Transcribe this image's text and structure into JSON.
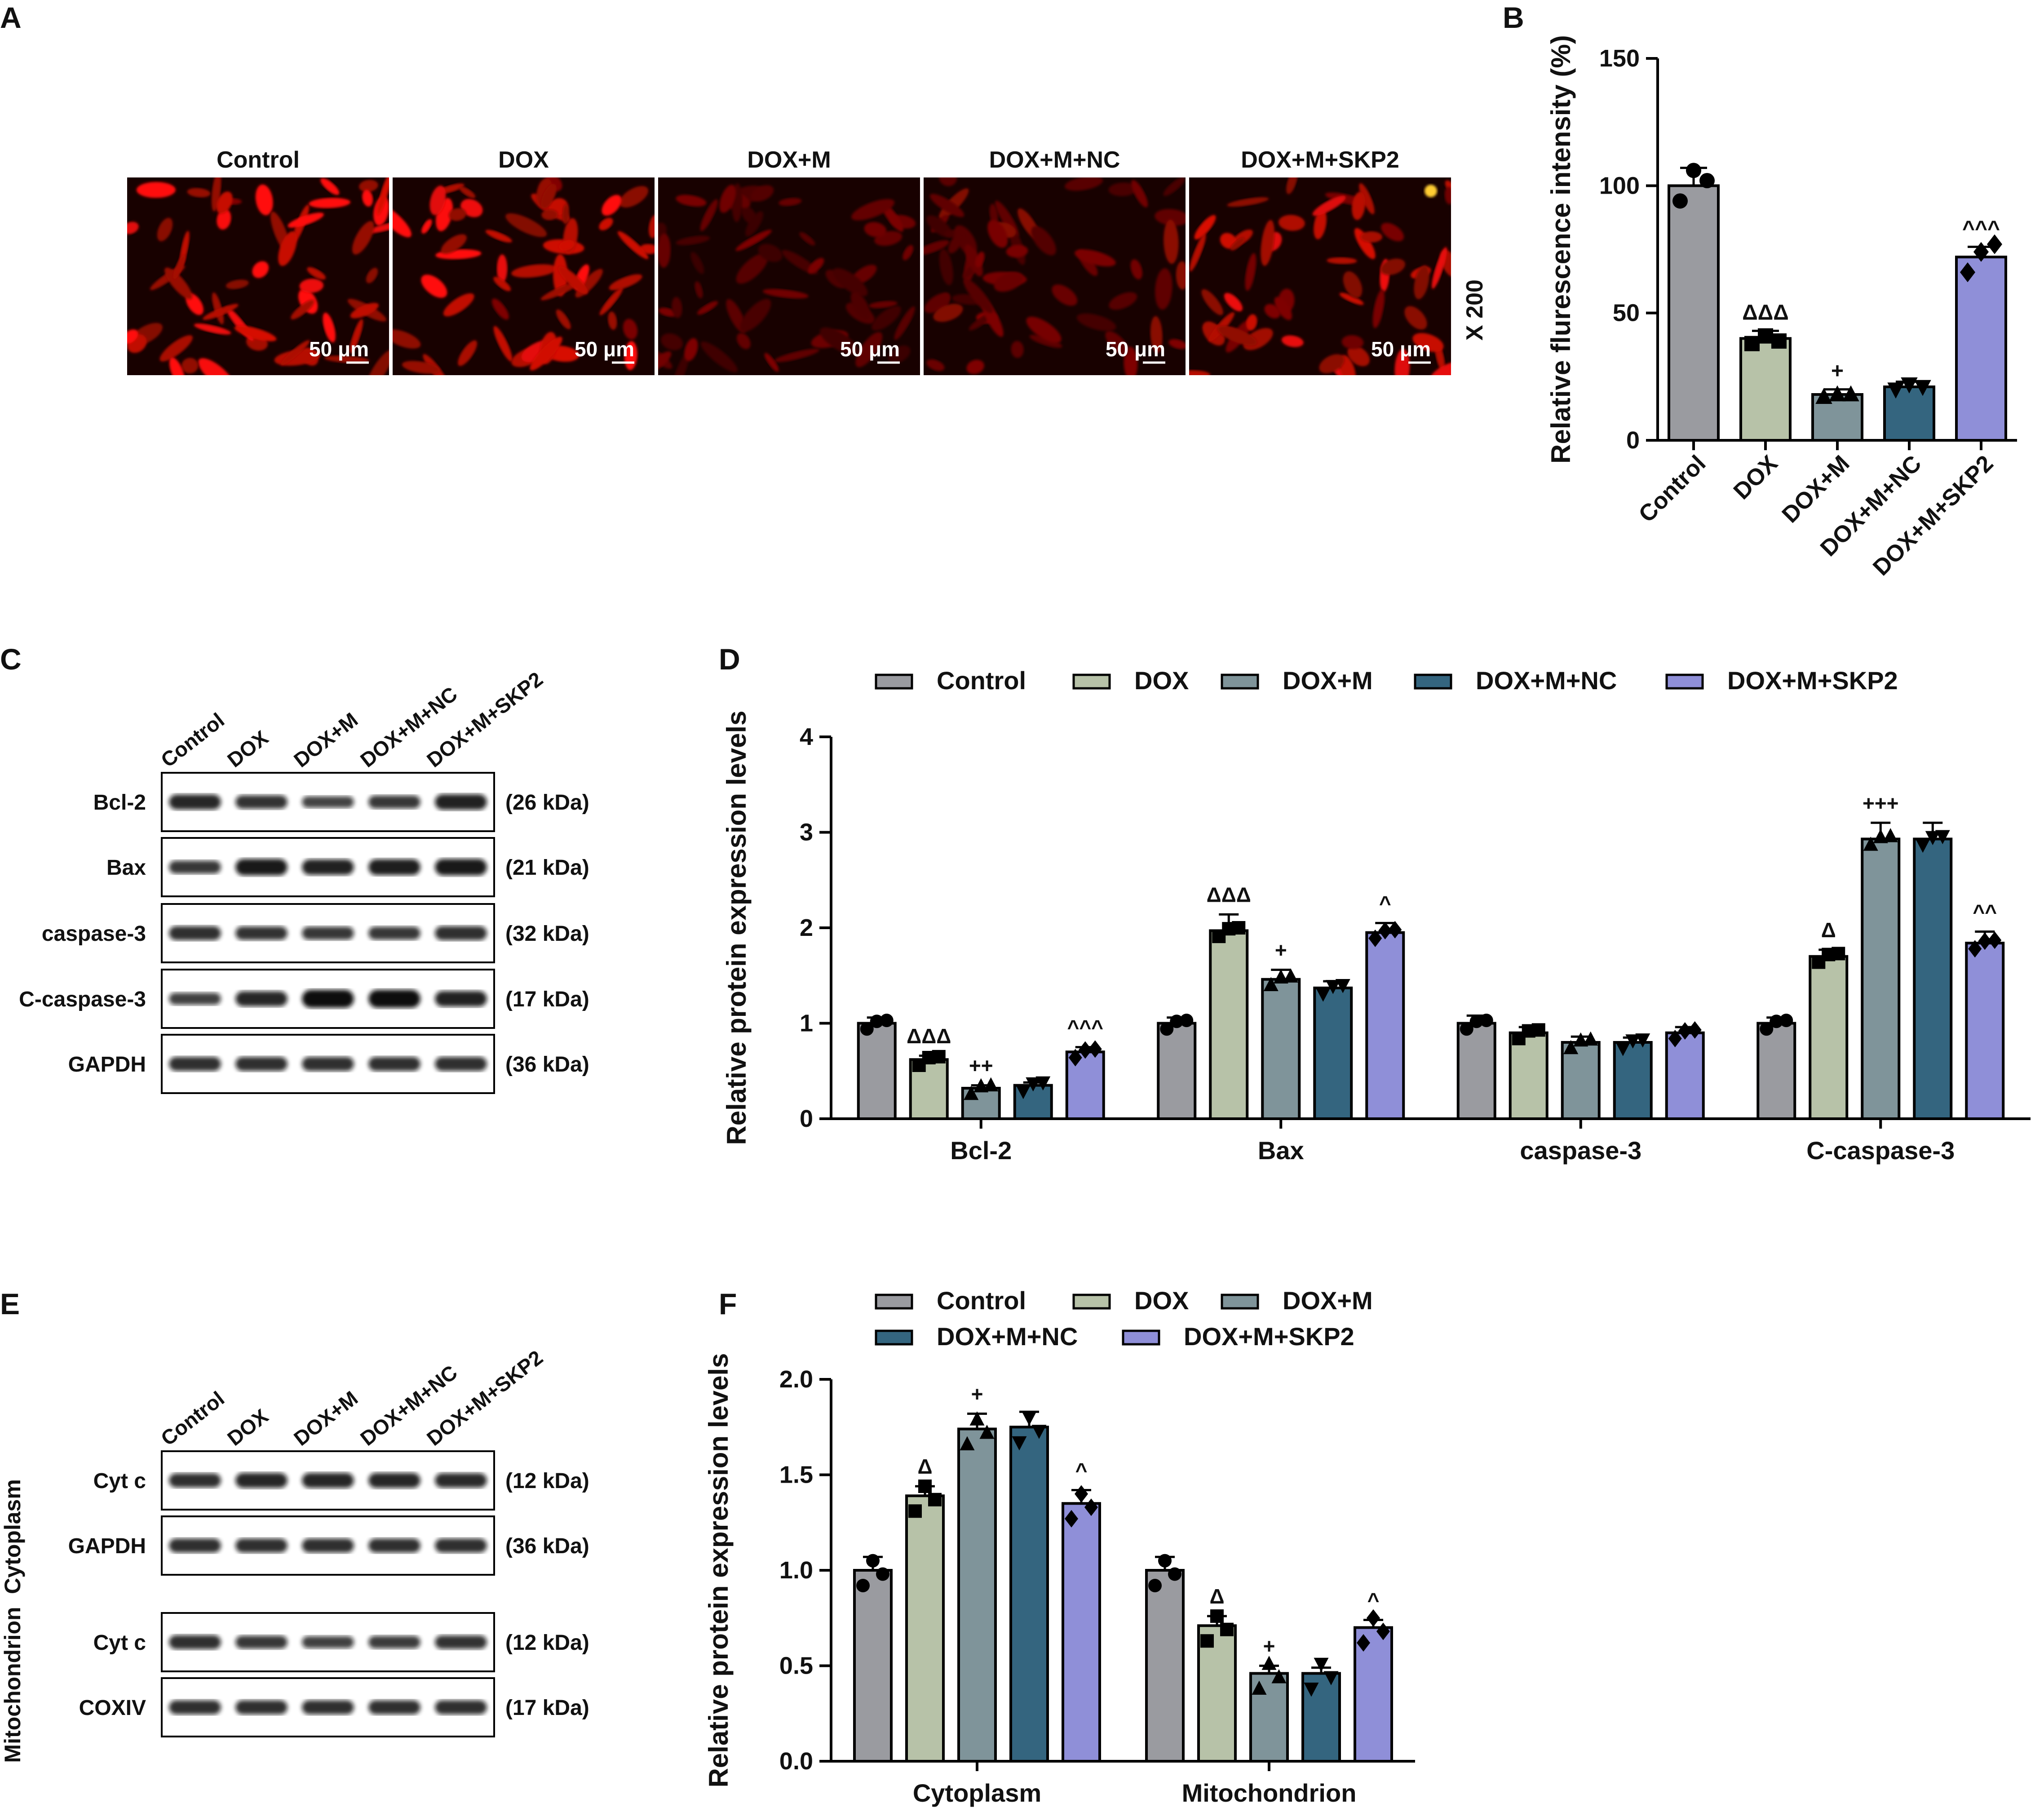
{
  "figure": {
    "panel_labels": [
      "A",
      "B",
      "C",
      "D",
      "E",
      "F"
    ],
    "group_names": [
      "Control",
      "DOX",
      "DOX+M",
      "DOX+M+NC",
      "DOX+M+SKP2"
    ],
    "group_colors": [
      "#9a9ba0",
      "#b7c2a8",
      "#7f949a",
      "#34657f",
      "#8f8fd8"
    ]
  },
  "panel_a": {
    "images": [
      {
        "label": "Control",
        "scale": "50 μm"
      },
      {
        "label": "DOX",
        "scale": "50 μm"
      },
      {
        "label": "DOX+M",
        "scale": "50 μm"
      },
      {
        "label": "DOX+M+NC",
        "scale": "50 μm"
      },
      {
        "label": "DOX+M+SKP2",
        "scale": "50 μm"
      }
    ],
    "magnification": "X 200"
  },
  "panel_c": {
    "lanes": [
      "Control",
      "DOX",
      "DOX+M",
      "DOX+M+NC",
      "DOX+M+SKP2"
    ],
    "blots": [
      {
        "protein": "Bcl-2",
        "kda": "(26 kDa)"
      },
      {
        "protein": "Bax",
        "kda": "(21 kDa)"
      },
      {
        "protein": "caspase-3",
        "kda": "(32 kDa)"
      },
      {
        "protein": "C-caspase-3",
        "kda": "(17 kDa)"
      },
      {
        "protein": "GAPDH",
        "kda": "(36 kDa)"
      }
    ]
  },
  "panel_e": {
    "lanes": [
      "Control",
      "DOX",
      "DOX+M",
      "DOX+M+NC",
      "DOX+M+SKP2"
    ],
    "fractions": [
      "Cytoplasm",
      "Mitochondrion"
    ],
    "blots": [
      {
        "protein": "Cyt c",
        "kda": "(12 kDa)"
      },
      {
        "protein": "GAPDH",
        "kda": "(36 kDa)"
      },
      {
        "protein": "Cyt c",
        "kda": "(12 kDa)"
      },
      {
        "protein": "COXIV",
        "kda": "(17 kDa)"
      }
    ]
  },
  "chart_data": [
    {
      "panel": "B",
      "type": "bar",
      "title": "",
      "xlabel": "",
      "ylabel": "Relative flurescence intensity (%)",
      "ylim": [
        0,
        150
      ],
      "yticks": [
        0,
        50,
        100,
        150
      ],
      "categories": [
        "Control",
        "DOX",
        "DOX+M",
        "DOX+M+NC",
        "DOX+M+SKP2"
      ],
      "values": [
        100,
        40,
        18,
        21,
        72
      ],
      "errors": [
        7,
        3,
        2,
        2,
        4
      ],
      "points": [
        [
          94,
          106,
          102
        ],
        [
          38,
          41,
          39
        ],
        [
          17,
          18,
          18
        ],
        [
          20,
          22,
          21
        ],
        [
          66,
          74,
          77
        ]
      ],
      "annotations": [
        "",
        "ΔΔΔ",
        "+",
        "",
        "^^^"
      ],
      "grid": false
    },
    {
      "panel": "D",
      "type": "bar",
      "title": "",
      "xlabel": "",
      "ylabel": "Relative protein expression levels",
      "ylim": [
        0,
        4
      ],
      "yticks": [
        0,
        1,
        2,
        3,
        4
      ],
      "categories": [
        "Bcl-2",
        "Bax",
        "caspase-3",
        "C-caspase-3"
      ],
      "legend": "top",
      "series": [
        {
          "name": "Control",
          "values": [
            1.0,
            1.0,
            1.0,
            1.0
          ],
          "errors": [
            0.06,
            0.06,
            0.08,
            0.06
          ],
          "annotations": [
            "",
            "",
            "",
            ""
          ]
        },
        {
          "name": "DOX",
          "values": [
            0.62,
            1.97,
            0.9,
            1.7
          ],
          "errors": [
            0.04,
            0.17,
            0.06,
            0.07
          ],
          "annotations": [
            "ΔΔΔ",
            "ΔΔΔ",
            "",
            "Δ"
          ]
        },
        {
          "name": "DOX+M",
          "values": [
            0.32,
            1.46,
            0.8,
            2.93
          ],
          "errors": [
            0.03,
            0.1,
            0.06,
            0.17
          ],
          "annotations": [
            "++",
            "+",
            "",
            "+++"
          ]
        },
        {
          "name": "DOX+M+NC",
          "values": [
            0.35,
            1.37,
            0.8,
            2.93
          ],
          "errors": [
            0.03,
            0.07,
            0.05,
            0.17
          ],
          "annotations": [
            "",
            "",
            "",
            ""
          ]
        },
        {
          "name": "DOX+M+SKP2",
          "values": [
            0.7,
            1.95,
            0.9,
            1.84
          ],
          "errors": [
            0.05,
            0.1,
            0.06,
            0.12
          ],
          "annotations": [
            "^^^",
            "^",
            "",
            "^^"
          ]
        }
      ],
      "grid": false
    },
    {
      "panel": "F",
      "type": "bar",
      "title": "",
      "xlabel": "",
      "ylabel": "Relative protein expression levels",
      "ylim": [
        0,
        2.0
      ],
      "yticks": [
        0.0,
        0.5,
        1.0,
        1.5,
        2.0
      ],
      "categories": [
        "Cytoplasm",
        "Mitochondrion"
      ],
      "legend": "top",
      "series": [
        {
          "name": "Control",
          "values": [
            1.0,
            1.0
          ],
          "errors": [
            0.07,
            0.07
          ],
          "annotations": [
            "",
            ""
          ]
        },
        {
          "name": "DOX",
          "values": [
            1.39,
            0.71
          ],
          "errors": [
            0.05,
            0.05
          ],
          "annotations": [
            "Δ",
            "Δ"
          ]
        },
        {
          "name": "DOX+M",
          "values": [
            1.74,
            0.46
          ],
          "errors": [
            0.08,
            0.04
          ],
          "annotations": [
            "+",
            "+"
          ]
        },
        {
          "name": "DOX+M+NC",
          "values": [
            1.75,
            0.46
          ],
          "errors": [
            0.08,
            0.03
          ],
          "annotations": [
            "",
            ""
          ]
        },
        {
          "name": "DOX+M+SKP2",
          "values": [
            1.35,
            0.7
          ],
          "errors": [
            0.07,
            0.04
          ],
          "annotations": [
            "^",
            "^"
          ]
        }
      ],
      "grid": false
    }
  ]
}
